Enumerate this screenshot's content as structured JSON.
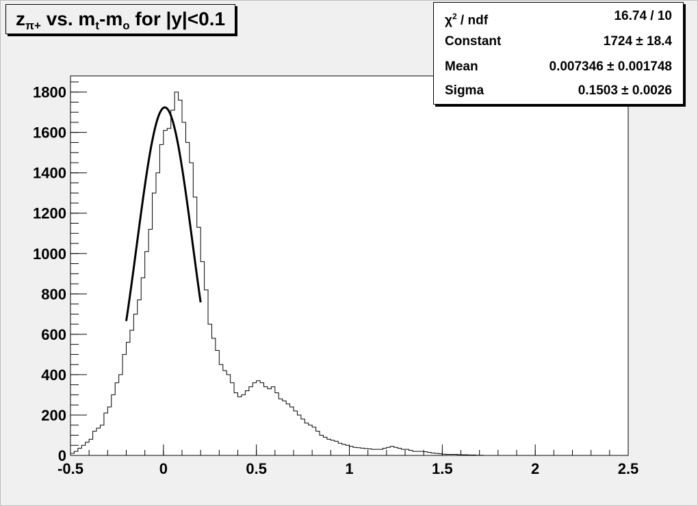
{
  "title": {
    "z": "z",
    "z_sub": "π+",
    "mid": " vs. m",
    "t_sub": "t",
    "dash": "-m",
    "o_sub": "o",
    "tail": " for |y|<0.1"
  },
  "stats": {
    "chi2_symbol": "χ",
    "chi2_sup": "2",
    "chi2_rest": " / ndf",
    "chi2_value": "16.74 / 10",
    "constant_label": "Constant",
    "constant_value": "1724 ± 18.4",
    "mean_label": "Mean",
    "mean_value": "0.007346 ± 0.001748",
    "sigma_label": "Sigma",
    "sigma_value": "0.1503 ± 0.0026"
  },
  "chart_data": {
    "type": "histogram",
    "title": "zπ+ vs. mt-mo for |y|<0.1",
    "xlim": [
      -0.5,
      2.5
    ],
    "ylim": [
      0,
      1880
    ],
    "x_ticks": [
      -0.5,
      0,
      0.5,
      1,
      1.5,
      2,
      2.5
    ],
    "x_tick_labels": [
      "-0.5",
      "0",
      "0.5",
      "1",
      "1.5",
      "2",
      "2.5"
    ],
    "y_ticks": [
      0,
      200,
      400,
      600,
      800,
      1000,
      1200,
      1400,
      1600,
      1800
    ],
    "y_tick_labels": [
      "0",
      "200",
      "400",
      "600",
      "800",
      "1000",
      "1200",
      "1400",
      "1600",
      "1800"
    ],
    "grid": false,
    "bin_width": 0.02,
    "bin_start": -0.5,
    "counts": [
      10,
      20,
      35,
      50,
      65,
      80,
      120,
      135,
      150,
      210,
      240,
      300,
      360,
      400,
      500,
      560,
      620,
      700,
      770,
      880,
      1010,
      1120,
      1300,
      1400,
      1540,
      1610,
      1620,
      1710,
      1800,
      1760,
      1650,
      1550,
      1450,
      1280,
      1130,
      960,
      820,
      650,
      580,
      520,
      450,
      420,
      400,
      360,
      310,
      290,
      300,
      320,
      340,
      360,
      370,
      360,
      340,
      330,
      340,
      310,
      280,
      270,
      255,
      240,
      220,
      200,
      180,
      160,
      150,
      140,
      120,
      100,
      90,
      80,
      75,
      70,
      60,
      55,
      50,
      45,
      40,
      38,
      36,
      34,
      32,
      30,
      30,
      30,
      35,
      40,
      45,
      40,
      35,
      30,
      30,
      25,
      20,
      20,
      20,
      18,
      15,
      12,
      10,
      8,
      6,
      5,
      5,
      5,
      4,
      3,
      3,
      2,
      2,
      1,
      1
    ],
    "fit": {
      "type": "gaussian",
      "range": [
        -0.2,
        0.2
      ],
      "constant": 1724,
      "mean": 0.007346,
      "sigma": 0.1503
    },
    "colors": {
      "frame_bg": "#f0f0f0",
      "plot_bg": "#ffffff",
      "histogram": "#000000",
      "fit": "#000000"
    }
  }
}
